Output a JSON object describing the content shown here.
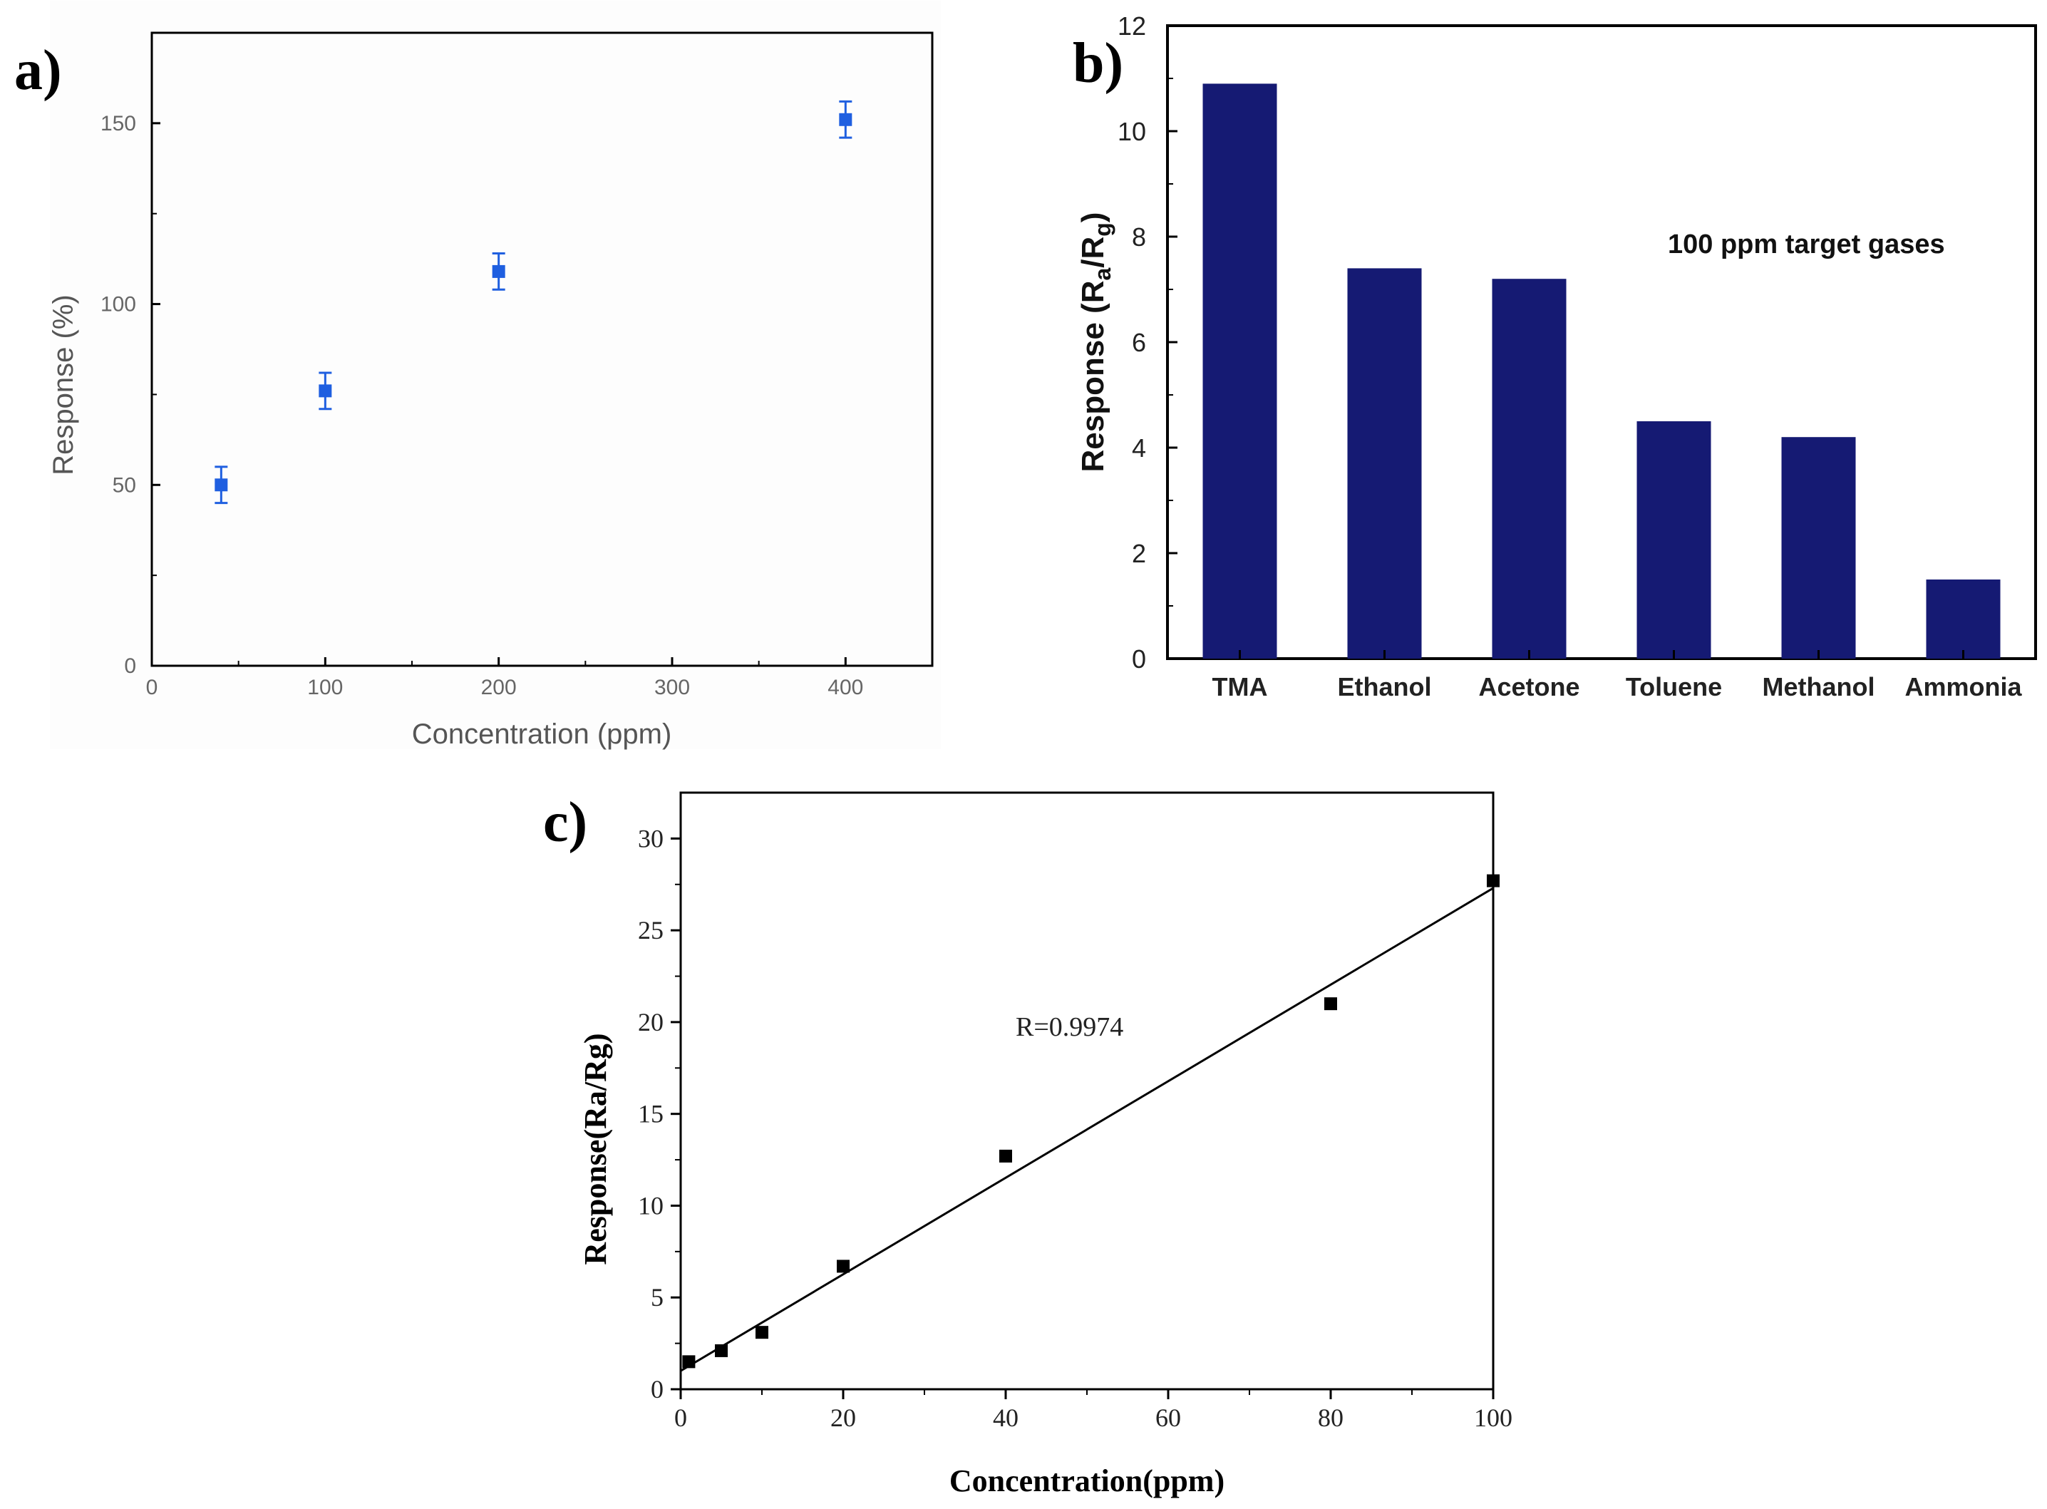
{
  "chart_data": [
    {
      "panel": "a)",
      "type": "scatter",
      "xlabel": "Concentration (ppm)",
      "ylabel": "Response (%)",
      "xlim": [
        0,
        450
      ],
      "ylim": [
        0,
        175
      ],
      "xticks": [
        0,
        100,
        200,
        300,
        400
      ],
      "yticks": [
        0,
        50,
        100,
        150
      ],
      "marker_color": "#1f5fe0",
      "series": [
        {
          "name": "Response",
          "x": [
            40,
            100,
            200,
            400
          ],
          "y": [
            50,
            76,
            109,
            151
          ],
          "yerr": [
            5,
            5,
            5,
            5
          ]
        }
      ]
    },
    {
      "panel": "b)",
      "type": "bar",
      "ylabel": "Response (Ra/Rg)",
      "ylabel_parts": [
        "Response (R",
        "a",
        "/R",
        "g",
        ")"
      ],
      "annotation": "100 ppm target gases",
      "categories": [
        "TMA",
        "Ethanol",
        "Acetone",
        "Toluene",
        "Methanol",
        "Ammonia"
      ],
      "values": [
        10.9,
        7.4,
        7.2,
        4.5,
        4.2,
        1.5
      ],
      "ylim": [
        0,
        12
      ],
      "yticks": [
        0,
        2,
        4,
        6,
        8,
        10,
        12
      ],
      "bar_color": "#151a73"
    },
    {
      "panel": "c)",
      "type": "scatter",
      "xlabel": "Concentration(ppm)",
      "ylabel": "Response(Ra/Rg)",
      "annotation": "R=0.9974",
      "xlim": [
        0,
        100
      ],
      "ylim": [
        0,
        32.5
      ],
      "xticks": [
        0,
        20,
        40,
        60,
        80,
        100
      ],
      "yticks": [
        0,
        5,
        10,
        15,
        20,
        25,
        30
      ],
      "series": [
        {
          "name": "Response",
          "x": [
            1,
            5,
            10,
            20,
            40,
            80,
            100
          ],
          "y": [
            1.5,
            2.1,
            3.1,
            6.7,
            12.7,
            21.0,
            27.7
          ]
        }
      ],
      "fit_line": {
        "x": [
          0,
          100
        ],
        "y": [
          1.0,
          27.3
        ]
      }
    }
  ]
}
